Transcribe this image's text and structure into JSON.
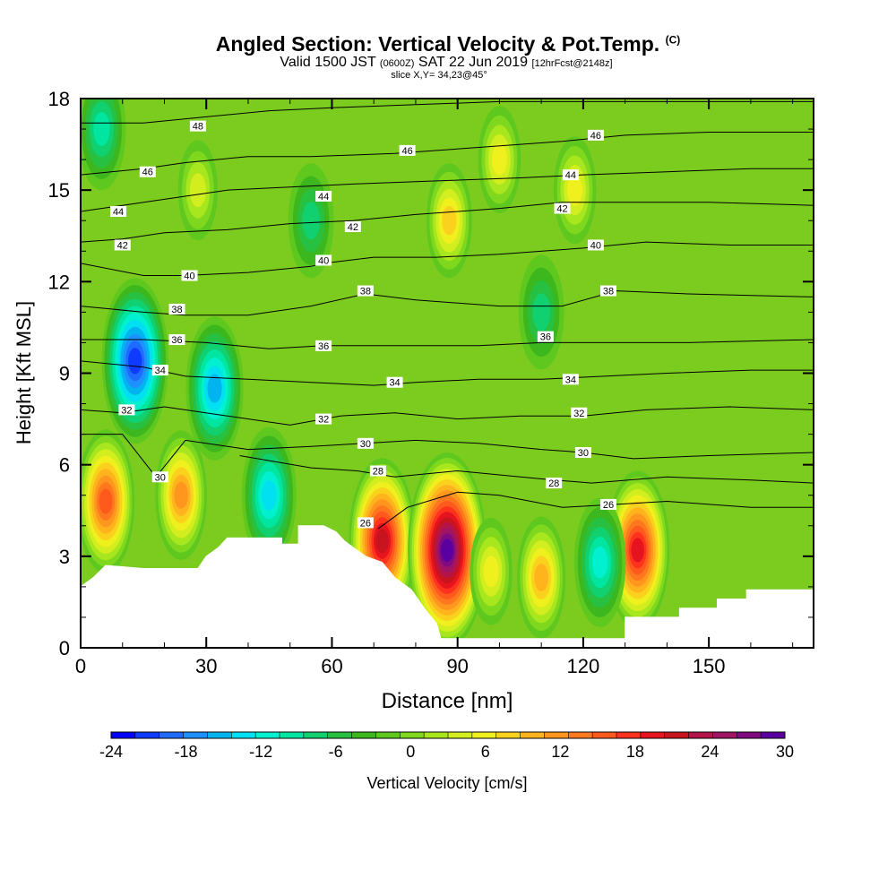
{
  "header": {
    "title": "Angled Section: Vertical Velocity & Pot.Temp.",
    "title_mark": "(C)",
    "valid_prefix": "Valid 1500 JST",
    "valid_zulu": "(0600Z)",
    "valid_date": "SAT 22 Jun 2019",
    "forecast": "[12hrFcst@2148z]",
    "slice": "slice X,Y= 34,23@45°"
  },
  "chart_data": {
    "type": "heatmap",
    "xlabel": "Distance [nm]",
    "ylabel": "Height [Kft MSL]",
    "xlim": [
      0,
      175
    ],
    "ylim": [
      0,
      18
    ],
    "xticks": [
      0,
      30,
      60,
      90,
      120,
      150
    ],
    "yticks": [
      0,
      3,
      6,
      9,
      12,
      15,
      18
    ],
    "colorbar": {
      "label": "Vertical Velocity [cm/s]",
      "min": -24,
      "max": 30,
      "step": 2,
      "ticks": [
        -24,
        -18,
        -12,
        -6,
        0,
        6,
        12,
        18,
        24,
        30
      ],
      "colors": [
        "#0000ff",
        "#0f3aff",
        "#1e6bff",
        "#1e90ff",
        "#00b4f0",
        "#00e0f0",
        "#00f0d0",
        "#00e6a0",
        "#10d070",
        "#28c040",
        "#3cb81e",
        "#5ec81e",
        "#80d81e",
        "#a8e61e",
        "#d2ee1e",
        "#f0f01e",
        "#fad21e",
        "#ffb41e",
        "#ff961e",
        "#ff781e",
        "#ff5a1e",
        "#ff321e",
        "#e6141e",
        "#c8141e",
        "#b4144a",
        "#a01464",
        "#800a80",
        "#5a00a0"
      ]
    },
    "terrain_kft": [
      [
        0,
        2
      ],
      [
        3,
        2.3
      ],
      [
        6,
        2.7
      ],
      [
        15,
        2.6
      ],
      [
        28,
        2.6
      ],
      [
        30,
        3
      ],
      [
        33,
        3.3
      ],
      [
        35,
        3.6
      ],
      [
        38,
        3.6
      ],
      [
        48,
        3.6
      ],
      [
        48,
        3.4
      ],
      [
        52,
        3.4
      ],
      [
        52,
        4
      ],
      [
        58,
        4
      ],
      [
        61,
        3.8
      ],
      [
        63,
        3.5
      ],
      [
        65,
        3.3
      ],
      [
        68,
        3
      ],
      [
        72,
        2.8
      ],
      [
        75,
        2.3
      ],
      [
        79,
        1.9
      ],
      [
        82,
        1.3
      ],
      [
        85,
        0.8
      ],
      [
        86,
        0.3
      ],
      [
        130,
        0.3
      ],
      [
        130,
        1
      ],
      [
        143,
        1
      ],
      [
        143,
        1.3
      ],
      [
        152,
        1.3
      ],
      [
        152,
        1.6
      ],
      [
        159,
        1.6
      ],
      [
        159,
        1.9
      ],
      [
        175,
        1.9
      ]
    ],
    "updrafts": [
      {
        "x": 6,
        "z": 4.8,
        "w": 16
      },
      {
        "x": 24,
        "z": 5,
        "w": 12
      },
      {
        "x": 72,
        "z": 3.5,
        "w": 22
      },
      {
        "x": 87.5,
        "z": 3.2,
        "w": 30
      },
      {
        "x": 110,
        "z": 2.3,
        "w": 10
      },
      {
        "x": 133,
        "z": 3.2,
        "w": 20
      },
      {
        "x": 98,
        "z": 2.5,
        "w": 6
      },
      {
        "x": 88,
        "z": 14,
        "w": 8
      },
      {
        "x": 100,
        "z": 16,
        "w": 6
      },
      {
        "x": 118,
        "z": 15,
        "w": 6
      },
      {
        "x": 28,
        "z": 15,
        "w": 4
      }
    ],
    "downdrafts": [
      {
        "x": 13,
        "z": 9.4,
        "w": -22
      },
      {
        "x": 32,
        "z": 8.5,
        "w": -16
      },
      {
        "x": 45,
        "z": 5,
        "w": -14
      },
      {
        "x": 124,
        "z": 2.8,
        "w": -12
      },
      {
        "x": 5,
        "z": 17,
        "w": -10
      },
      {
        "x": 55,
        "z": 14,
        "w": -8
      },
      {
        "x": 110,
        "z": 11,
        "w": -8
      }
    ],
    "isentropes": [
      {
        "theta": 26,
        "pts": [
          [
            71,
            3.9
          ],
          [
            78,
            4.6
          ],
          [
            90,
            5.1
          ],
          [
            100,
            5.0
          ],
          [
            115,
            4.6
          ],
          [
            128,
            4.7
          ],
          [
            140,
            4.8
          ],
          [
            160,
            4.6
          ],
          [
            175,
            4.6
          ]
        ]
      },
      {
        "theta": 28,
        "pts": [
          [
            38,
            6.3
          ],
          [
            55,
            5.9
          ],
          [
            66,
            5.8
          ],
          [
            75,
            5.6
          ],
          [
            90,
            5.8
          ],
          [
            105,
            5.6
          ],
          [
            113,
            5.5
          ],
          [
            122,
            5.4
          ],
          [
            140,
            5.6
          ],
          [
            160,
            5.5
          ],
          [
            175,
            5.4
          ]
        ]
      },
      {
        "theta": 30,
        "pts": [
          [
            0,
            7.0
          ],
          [
            10,
            7.0
          ],
          [
            18,
            5.6
          ],
          [
            25,
            6.8
          ],
          [
            40,
            6.5
          ],
          [
            55,
            6.6
          ],
          [
            68,
            6.7
          ],
          [
            80,
            6.8
          ],
          [
            95,
            6.7
          ],
          [
            110,
            6.5
          ],
          [
            120,
            6.4
          ],
          [
            132,
            6.2
          ],
          [
            150,
            6.3
          ],
          [
            175,
            6.4
          ]
        ]
      },
      {
        "theta": 32,
        "pts": [
          [
            0,
            7.8
          ],
          [
            10,
            7.7
          ],
          [
            20,
            7.9
          ],
          [
            35,
            7.6
          ],
          [
            50,
            7.3
          ],
          [
            62,
            7.6
          ],
          [
            75,
            7.7
          ],
          [
            90,
            7.5
          ],
          [
            105,
            7.6
          ],
          [
            120,
            7.6
          ],
          [
            135,
            7.8
          ],
          [
            155,
            7.9
          ],
          [
            175,
            7.8
          ]
        ]
      },
      {
        "theta": 34,
        "pts": [
          [
            0,
            9.4
          ],
          [
            15,
            9.2
          ],
          [
            25,
            8.9
          ],
          [
            40,
            8.8
          ],
          [
            55,
            8.7
          ],
          [
            70,
            8.6
          ],
          [
            80,
            8.7
          ],
          [
            95,
            8.8
          ],
          [
            110,
            8.8
          ],
          [
            125,
            8.9
          ],
          [
            140,
            9.0
          ],
          [
            160,
            9.1
          ],
          [
            175,
            9.1
          ]
        ]
      },
      {
        "theta": 36,
        "pts": [
          [
            0,
            10.1
          ],
          [
            15,
            10.1
          ],
          [
            30,
            10.0
          ],
          [
            45,
            9.8
          ],
          [
            58,
            9.9
          ],
          [
            75,
            9.9
          ],
          [
            95,
            9.9
          ],
          [
            110,
            10.0
          ],
          [
            125,
            10.0
          ],
          [
            145,
            10.0
          ],
          [
            175,
            10.1
          ]
        ]
      },
      {
        "theta": 38,
        "pts": [
          [
            0,
            11.2
          ],
          [
            15,
            11.0
          ],
          [
            25,
            10.9
          ],
          [
            40,
            10.9
          ],
          [
            55,
            11.2
          ],
          [
            68,
            11.6
          ],
          [
            80,
            11.4
          ],
          [
            100,
            11.2
          ],
          [
            115,
            11.2
          ],
          [
            128,
            11.7
          ],
          [
            145,
            11.6
          ],
          [
            175,
            11.5
          ]
        ]
      },
      {
        "theta": 40,
        "pts": [
          [
            0,
            12.6
          ],
          [
            15,
            12.2
          ],
          [
            25,
            12.2
          ],
          [
            40,
            12.3
          ],
          [
            55,
            12.5
          ],
          [
            58,
            12.6
          ],
          [
            70,
            12.8
          ],
          [
            85,
            12.8
          ],
          [
            100,
            12.9
          ],
          [
            120,
            13.1
          ],
          [
            135,
            13.3
          ],
          [
            155,
            13.2
          ],
          [
            175,
            13.2
          ]
        ]
      },
      {
        "theta": 42,
        "pts": [
          [
            0,
            13.3
          ],
          [
            10,
            13.4
          ],
          [
            20,
            13.6
          ],
          [
            35,
            13.7
          ],
          [
            50,
            13.9
          ],
          [
            65,
            14.0
          ],
          [
            80,
            14.2
          ],
          [
            100,
            14.4
          ],
          [
            115,
            14.6
          ],
          [
            130,
            14.6
          ],
          [
            150,
            14.6
          ],
          [
            175,
            14.5
          ]
        ]
      },
      {
        "theta": 44,
        "pts": [
          [
            0,
            14.3
          ],
          [
            10,
            14.5
          ],
          [
            20,
            14.7
          ],
          [
            35,
            15.0
          ],
          [
            50,
            15.1
          ],
          [
            65,
            15.2
          ],
          [
            85,
            15.3
          ],
          [
            105,
            15.4
          ],
          [
            120,
            15.5
          ],
          [
            140,
            15.6
          ],
          [
            160,
            15.7
          ],
          [
            175,
            15.7
          ]
        ]
      },
      {
        "theta": 46,
        "pts": [
          [
            0,
            15.5
          ],
          [
            15,
            15.7
          ],
          [
            25,
            15.9
          ],
          [
            40,
            16.1
          ],
          [
            55,
            16.1
          ],
          [
            75,
            16.2
          ],
          [
            95,
            16.4
          ],
          [
            115,
            16.6
          ],
          [
            130,
            16.8
          ],
          [
            150,
            16.9
          ],
          [
            175,
            16.9
          ]
        ]
      },
      {
        "theta": 48,
        "pts": [
          [
            0,
            17.2
          ],
          [
            15,
            17.2
          ],
          [
            30,
            17.4
          ],
          [
            45,
            17.6
          ],
          [
            60,
            17.7
          ],
          [
            80,
            17.8
          ],
          [
            100,
            17.9
          ],
          [
            120,
            17.9
          ],
          [
            145,
            17.9
          ],
          [
            175,
            17.9
          ]
        ]
      }
    ],
    "contour_labels": [
      {
        "text": "48",
        "x": 28,
        "z": 17.1
      },
      {
        "text": "46",
        "x": 16,
        "z": 15.6
      },
      {
        "text": "46",
        "x": 78,
        "z": 16.3
      },
      {
        "text": "46",
        "x": 123,
        "z": 16.8
      },
      {
        "text": "44",
        "x": 9,
        "z": 14.3
      },
      {
        "text": "44",
        "x": 58,
        "z": 14.8
      },
      {
        "text": "44",
        "x": 117,
        "z": 15.5
      },
      {
        "text": "42",
        "x": 10,
        "z": 13.2
      },
      {
        "text": "42",
        "x": 65,
        "z": 13.8
      },
      {
        "text": "42",
        "x": 115,
        "z": 14.4
      },
      {
        "text": "40",
        "x": 26,
        "z": 12.2
      },
      {
        "text": "40",
        "x": 58,
        "z": 12.7
      },
      {
        "text": "40",
        "x": 123,
        "z": 13.2
      },
      {
        "text": "38",
        "x": 23,
        "z": 11.1
      },
      {
        "text": "38",
        "x": 68,
        "z": 11.7
      },
      {
        "text": "38",
        "x": 126,
        "z": 11.7
      },
      {
        "text": "36",
        "x": 23,
        "z": 10.1
      },
      {
        "text": "36",
        "x": 58,
        "z": 9.9
      },
      {
        "text": "36",
        "x": 111,
        "z": 10.2
      },
      {
        "text": "34",
        "x": 19,
        "z": 9.1
      },
      {
        "text": "34",
        "x": 75,
        "z": 8.7
      },
      {
        "text": "34",
        "x": 117,
        "z": 8.8
      },
      {
        "text": "32",
        "x": 11,
        "z": 7.8
      },
      {
        "text": "32",
        "x": 58,
        "z": 7.5
      },
      {
        "text": "32",
        "x": 119,
        "z": 7.7
      },
      {
        "text": "30",
        "x": 19,
        "z": 5.6
      },
      {
        "text": "30",
        "x": 68,
        "z": 6.7
      },
      {
        "text": "30",
        "x": 120,
        "z": 6.4
      },
      {
        "text": "28",
        "x": 71,
        "z": 5.8
      },
      {
        "text": "28",
        "x": 113,
        "z": 5.4
      },
      {
        "text": "26",
        "x": 68,
        "z": 4.1
      },
      {
        "text": "26",
        "x": 126,
        "z": 4.7
      }
    ]
  }
}
